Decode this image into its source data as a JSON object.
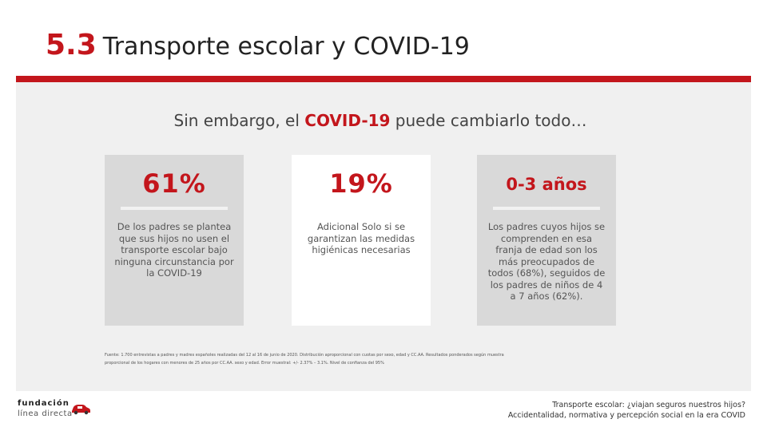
{
  "header": {
    "section_number": "5.3",
    "title": "Transporte escolar y COVID-19"
  },
  "subtitle": {
    "before": "Sin embargo, el ",
    "highlight": "COVID-19",
    "after": " puede cambiarlo todo…"
  },
  "cards": [
    {
      "value": "61%",
      "description": "De los padres se plantea que sus hijos no usen el transporte escolar bajo ninguna circunstancia por la COVID-19"
    },
    {
      "value": "19%",
      "description": "Adicional Solo si se garantizan las medidas higiénicas necesarias"
    },
    {
      "value": "0-3 años",
      "description": "Los padres cuyos hijos se comprenden en esa franja de edad son los más preocupados de todos (68%), seguidos de los padres de niños de 4 a 7 años (62%)."
    }
  ],
  "source": {
    "line1": "Fuente: 1.700 entrevistas a padres y madres españoles realizadas del 12 al 16 de junio de 2020. Distribución aproporcional con cuotas por sexo, edad y CC.AA. Resultados ponderados según muestra",
    "line2": "proporcional de los hogares con menores de 25 años por CC.AA. sexo y edad. Error muestral: +/- 2.37% – 3.1%. Nivel de confianza del 95%"
  },
  "logo": {
    "line1": "fundación",
    "line2": "línea directa",
    "icon": "red-car-icon"
  },
  "footer": {
    "line1": "Transporte escolar: ¿viajan seguros nuestros hijos?",
    "line2": "Accidentalidad, normativa y percepción social en la era COVID"
  },
  "colors": {
    "accent": "#c3161c",
    "panel": "#f0f0f0",
    "card_gray": "#d9d9d9",
    "card_white": "#ffffff"
  }
}
